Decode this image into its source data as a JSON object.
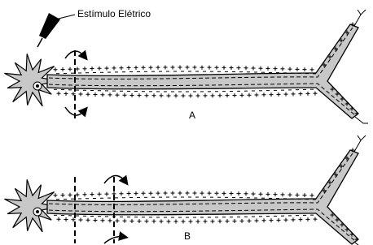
{
  "stimulus_label": "Estímulo Elétrico",
  "panels": [
    {
      "label": "A"
    },
    {
      "label": "B"
    }
  ]
}
